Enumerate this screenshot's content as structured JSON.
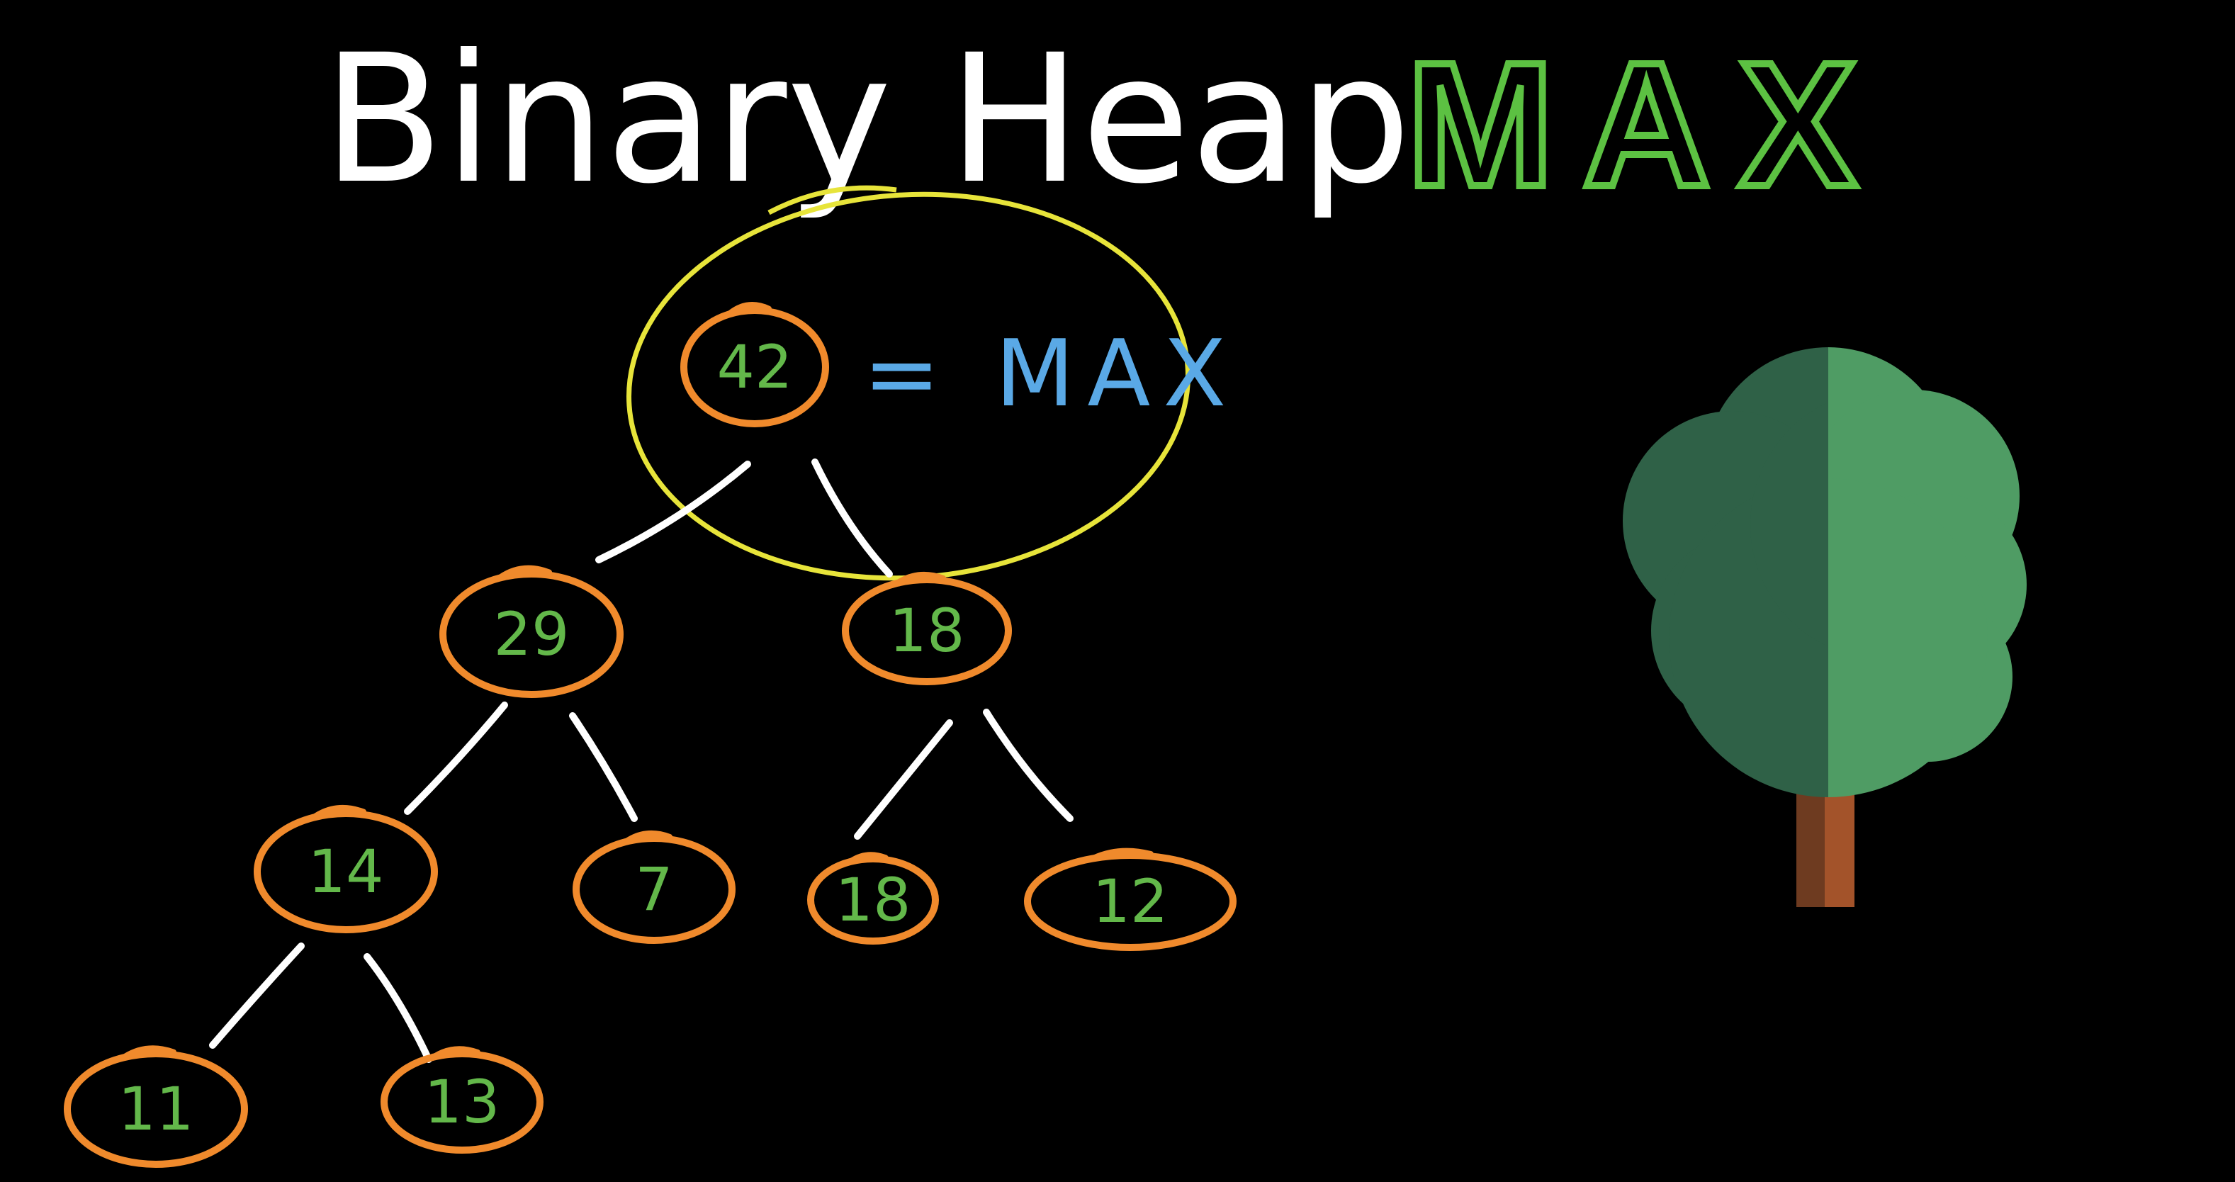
{
  "title": {
    "main": "Binary Heap",
    "qualifier": "MAX"
  },
  "annotation": {
    "text": "= MAX",
    "target_node": "n0"
  },
  "colors": {
    "background": "#000000",
    "title": "#ffffff",
    "qualifier": "#5cc142",
    "annotation": "#5aa9e6",
    "node_ring": "#f08a2c",
    "node_label": "#63b84a",
    "edge": "#ffffff",
    "highlight": "#e7e43a",
    "tree_foliage_dark": "#2f6147",
    "tree_foliage_light": "#4f9c64",
    "tree_trunk_dark": "#6e3b20",
    "tree_trunk_light": "#a3532a"
  },
  "heap": {
    "nodes": [
      {
        "id": "n0",
        "value": "42"
      },
      {
        "id": "n1",
        "value": "29"
      },
      {
        "id": "n2",
        "value": "18"
      },
      {
        "id": "n3",
        "value": "14"
      },
      {
        "id": "n4",
        "value": "7"
      },
      {
        "id": "n5",
        "value": "18"
      },
      {
        "id": "n6",
        "value": "12"
      },
      {
        "id": "n7",
        "value": "11"
      },
      {
        "id": "n8",
        "value": "13"
      }
    ],
    "edges": [
      {
        "from": "n0",
        "to": "n1"
      },
      {
        "from": "n0",
        "to": "n2"
      },
      {
        "from": "n1",
        "to": "n3"
      },
      {
        "from": "n1",
        "to": "n4"
      },
      {
        "from": "n2",
        "to": "n5"
      },
      {
        "from": "n2",
        "to": "n6"
      },
      {
        "from": "n3",
        "to": "n7"
      },
      {
        "from": "n3",
        "to": "n8"
      }
    ]
  },
  "icons": {
    "tree": "tree-icon"
  }
}
